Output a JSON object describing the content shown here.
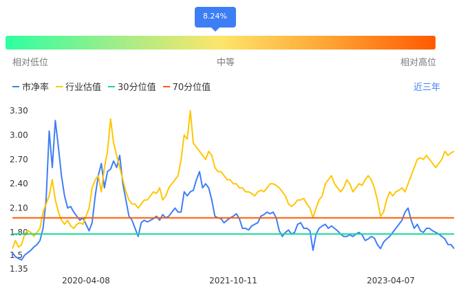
{
  "gauge": {
    "value_label": "8.24%",
    "position_fraction": 0.5,
    "low_label": "相对低位",
    "mid_label": "中等",
    "high_label": "相对高位"
  },
  "legend": [
    {
      "name": "市净率",
      "color": "#3d7df6"
    },
    {
      "name": "行业估值",
      "color": "#ffc600"
    },
    {
      "name": "30分位值",
      "color": "#12d89a"
    },
    {
      "name": "70分位值",
      "color": "#ff5a00"
    }
  ],
  "period_button": "近三年",
  "chart_data": {
    "type": "line",
    "title": "",
    "xlabel": "",
    "ylabel": "",
    "x_tick_labels": [
      "2020-04-08",
      "2021-10-11",
      "2023-04-07"
    ],
    "y_tick_labels": [
      "3.30",
      "3.00",
      "2.70",
      "2.40",
      "2.10",
      "1.80",
      "1.5",
      "1.35"
    ],
    "ylim": [
      1.35,
      3.3
    ],
    "grid": false,
    "legend_position": "top-left",
    "series": [
      {
        "name": "市净率",
        "color": "#3d7df6",
        "values": [
          1.55,
          1.5,
          1.48,
          1.46,
          1.52,
          1.55,
          1.58,
          1.62,
          1.65,
          1.7,
          1.85,
          2.2,
          3.05,
          2.6,
          3.18,
          2.85,
          2.5,
          2.25,
          2.1,
          2.12,
          2.05,
          2.0,
          1.95,
          1.98,
          1.9,
          1.82,
          1.92,
          2.25,
          2.5,
          2.65,
          2.35,
          2.55,
          2.58,
          2.68,
          2.6,
          2.75,
          2.4,
          2.2,
          2.0,
          1.95,
          1.85,
          1.75,
          1.92,
          1.95,
          1.93,
          1.95,
          1.97,
          2.0,
          1.95,
          2.02,
          1.98,
          2.0,
          2.05,
          2.1,
          2.05,
          2.05,
          2.3,
          2.25,
          2.3,
          2.32,
          2.45,
          2.55,
          2.35,
          2.4,
          2.35,
          2.2,
          2.0,
          1.98,
          1.97,
          1.92,
          1.95,
          1.98,
          2.0,
          2.03,
          1.97,
          1.85,
          1.85,
          1.83,
          1.88,
          1.9,
          1.92,
          2.0,
          2.02,
          2.05,
          2.03,
          2.05,
          1.98,
          1.82,
          1.75,
          1.8,
          1.83,
          1.78,
          1.8,
          1.9,
          1.92,
          1.85,
          1.85,
          1.82,
          1.58,
          1.78,
          1.85,
          1.88,
          1.9,
          1.85,
          1.88,
          1.85,
          1.82,
          1.78,
          1.75,
          1.75,
          1.77,
          1.75,
          1.78,
          1.8,
          1.77,
          1.7,
          1.72,
          1.75,
          1.73,
          1.65,
          1.6,
          1.68,
          1.72,
          1.75,
          1.8,
          1.85,
          1.9,
          1.95,
          2.05,
          2.1,
          1.95,
          1.85,
          1.9,
          1.82,
          1.8,
          1.85,
          1.85,
          1.82,
          1.8,
          1.78,
          1.75,
          1.72,
          1.65,
          1.65,
          1.6
        ]
      },
      {
        "name": "行业估值",
        "color": "#ffc600",
        "values": [
          1.6,
          1.7,
          1.62,
          1.65,
          1.78,
          1.82,
          1.8,
          1.75,
          1.8,
          1.85,
          2.05,
          2.15,
          2.25,
          2.45,
          2.2,
          2.05,
          1.95,
          1.9,
          1.95,
          1.88,
          1.85,
          1.9,
          1.92,
          1.9,
          2.0,
          2.1,
          2.35,
          2.45,
          2.5,
          2.3,
          2.6,
          2.8,
          3.2,
          2.9,
          2.75,
          2.6,
          2.45,
          2.3,
          2.2,
          2.15,
          2.15,
          2.1,
          2.15,
          2.2,
          2.2,
          2.25,
          2.3,
          2.28,
          2.35,
          2.2,
          2.25,
          2.35,
          2.4,
          2.45,
          2.5,
          2.7,
          3.0,
          2.95,
          3.3,
          2.9,
          2.85,
          2.8,
          2.75,
          2.7,
          2.8,
          2.75,
          2.6,
          2.55,
          2.55,
          2.5,
          2.45,
          2.45,
          2.4,
          2.4,
          2.35,
          2.35,
          2.3,
          2.3,
          2.28,
          2.25,
          2.3,
          2.32,
          2.3,
          2.35,
          2.4,
          2.4,
          2.38,
          2.35,
          2.3,
          2.25,
          2.15,
          2.12,
          2.15,
          2.2,
          2.2,
          2.22,
          2.15,
          2.1,
          1.98,
          2.1,
          2.2,
          2.25,
          2.4,
          2.45,
          2.5,
          2.4,
          2.35,
          2.3,
          2.35,
          2.45,
          2.4,
          2.3,
          2.35,
          2.4,
          2.38,
          2.45,
          2.5,
          2.45,
          2.35,
          2.2,
          2.0,
          2.05,
          2.2,
          2.3,
          2.25,
          2.3,
          2.32,
          2.35,
          2.3,
          2.4,
          2.5,
          2.6,
          2.7,
          2.72,
          2.7,
          2.75,
          2.7,
          2.65,
          2.6,
          2.65,
          2.7,
          2.8,
          2.75,
          2.78,
          2.8
        ]
      },
      {
        "name": "30分位值",
        "color": "#12d89a",
        "values": [
          1.78,
          1.78
        ]
      },
      {
        "name": "70分位值",
        "color": "#ff5a00",
        "values": [
          1.98,
          1.98
        ]
      }
    ]
  }
}
